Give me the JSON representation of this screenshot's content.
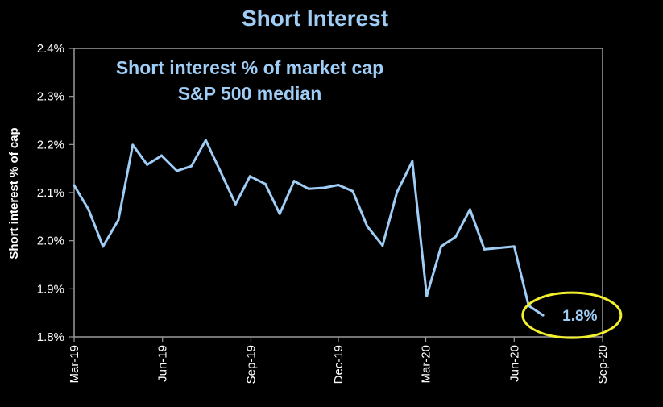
{
  "chart_data": {
    "type": "line",
    "title": "Short Interest",
    "inner_title": [
      "Short interest % of market cap",
      "S&P 500 median"
    ],
    "ylabel": "Short interest % of cap",
    "xlabel": "",
    "ylim": [
      1.8,
      2.4
    ],
    "y_ticks": [
      1.8,
      1.9,
      2.0,
      2.1,
      2.2,
      2.3,
      2.4
    ],
    "y_tick_labels": [
      "1.8%",
      "1.9%",
      "2.0%",
      "2.1%",
      "2.2%",
      "2.3%",
      "2.4%"
    ],
    "x_ticks": [
      "2019-03-01",
      "2019-06-01",
      "2019-09-01",
      "2019-12-01",
      "2020-03-01",
      "2020-06-01",
      "2020-09-01"
    ],
    "x_tick_labels": [
      "Mar-19",
      "Jun-19",
      "Sep-19",
      "Dec-19",
      "Mar-20",
      "Jun-20",
      "Sep-20"
    ],
    "xlim": [
      "2019-03-01",
      "2020-09-01"
    ],
    "grid": false,
    "series": [
      {
        "color": "#9fcdf5",
        "points": [
          {
            "x": "2019-03-01",
            "y": 2.115
          },
          {
            "x": "2019-03-16",
            "y": 2.065
          },
          {
            "x": "2019-03-31",
            "y": 1.988
          },
          {
            "x": "2019-04-16",
            "y": 2.043
          },
          {
            "x": "2019-05-01",
            "y": 2.199
          },
          {
            "x": "2019-05-16",
            "y": 2.158
          },
          {
            "x": "2019-05-31",
            "y": 2.177
          },
          {
            "x": "2019-06-16",
            "y": 2.145
          },
          {
            "x": "2019-07-01",
            "y": 2.155
          },
          {
            "x": "2019-07-16",
            "y": 2.209
          },
          {
            "x": "2019-07-31",
            "y": 2.145
          },
          {
            "x": "2019-08-16",
            "y": 2.076
          },
          {
            "x": "2019-08-31",
            "y": 2.134
          },
          {
            "x": "2019-09-16",
            "y": 2.118
          },
          {
            "x": "2019-10-01",
            "y": 2.056
          },
          {
            "x": "2019-10-16",
            "y": 2.124
          },
          {
            "x": "2019-10-31",
            "y": 2.108
          },
          {
            "x": "2019-11-16",
            "y": 2.11
          },
          {
            "x": "2019-12-01",
            "y": 2.116
          },
          {
            "x": "2019-12-16",
            "y": 2.103
          },
          {
            "x": "2019-12-31",
            "y": 2.03
          },
          {
            "x": "2020-01-16",
            "y": 1.99
          },
          {
            "x": "2020-01-31",
            "y": 2.101
          },
          {
            "x": "2020-02-16",
            "y": 2.165
          },
          {
            "x": "2020-03-02",
            "y": 1.885
          },
          {
            "x": "2020-03-17",
            "y": 1.988
          },
          {
            "x": "2020-04-01",
            "y": 2.008
          },
          {
            "x": "2020-04-16",
            "y": 2.065
          },
          {
            "x": "2020-05-01",
            "y": 1.982
          },
          {
            "x": "2020-06-01",
            "y": 1.988
          },
          {
            "x": "2020-06-16",
            "y": 1.865
          },
          {
            "x": "2020-07-01",
            "y": 1.845
          }
        ]
      }
    ],
    "annotations": [
      {
        "text": "1.8%",
        "x": "2020-07-31",
        "y": 1.845,
        "shape": "ellipse",
        "outline_color": "#f2ef2e"
      }
    ]
  },
  "colors": {
    "background": "#000000",
    "text": "#ffffff",
    "accent": "#9fcdf5",
    "axis": "#9a9a9a",
    "highlight": "#f2ef2e"
  }
}
